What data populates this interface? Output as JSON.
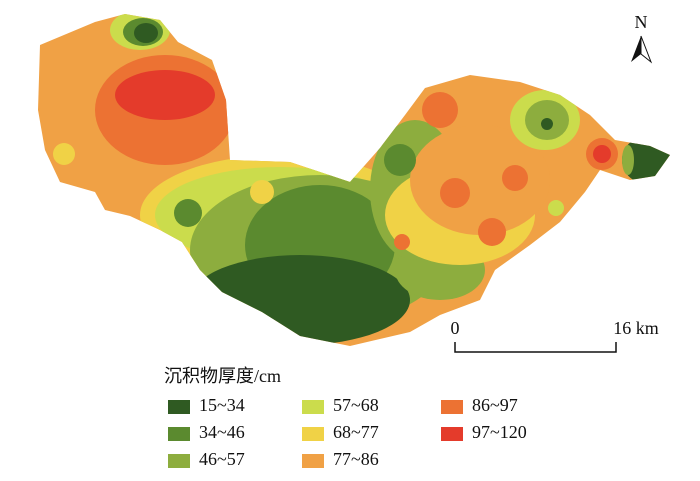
{
  "map": {
    "north_label": "N",
    "scale_bar": {
      "start": "0",
      "end": "16 km"
    },
    "legend": {
      "title": "沉积物厚度/cm",
      "items": [
        {
          "label": "15~34",
          "color": "#2f5a22"
        },
        {
          "label": "34~46",
          "color": "#5b8a2f"
        },
        {
          "label": "46~57",
          "color": "#8dad3e"
        },
        {
          "label": "57~68",
          "color": "#cbdc4c"
        },
        {
          "label": "68~77",
          "color": "#f0d246"
        },
        {
          "label": "77~86",
          "color": "#f0a145"
        },
        {
          "label": "86~97",
          "color": "#ec7233"
        },
        {
          "label": "97~120",
          "color": "#e43b2b"
        }
      ]
    }
  }
}
